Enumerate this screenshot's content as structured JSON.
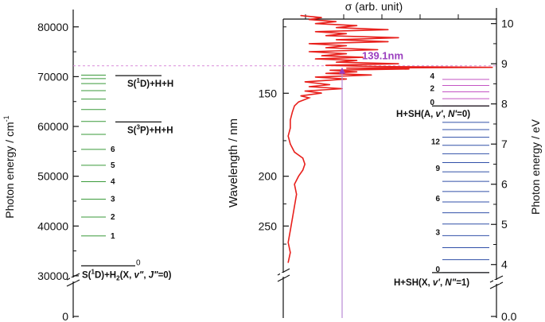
{
  "chart_data": {
    "type": "line",
    "left_axis": {
      "label": "Photon energy / cm",
      "label_superscript": "-1",
      "ticks": [
        "0",
        "30000",
        "40000",
        "50000",
        "60000",
        "70000",
        "80000"
      ],
      "range": [
        28000,
        83500
      ],
      "break": true
    },
    "center_axis": {
      "label": "Wavelength / nm",
      "ticks": [
        "150",
        "200",
        "250"
      ]
    },
    "top_axis": {
      "label": "σ (arb. unit)"
    },
    "right_axis": {
      "label": "Photon energy / eV",
      "ticks": [
        "0.0",
        "4",
        "5",
        "6",
        "7",
        "8",
        "9",
        "10"
      ],
      "range": [
        3.5,
        10.35
      ],
      "break": true
    },
    "left_levels": {
      "base_label": "S(",
      "base_label_sup": "1",
      "base_label_mid": "D)+H",
      "base_label_sub": "2",
      "base_label_tail": "(X, ",
      "base_label_v": "v\"",
      "base_label_sep": ", ",
      "base_label_j": "J\"",
      "base_label_end": "=0)",
      "base_energy": 32000,
      "base_tag": "0",
      "vibrational_energies": [
        38000,
        41800,
        45400,
        48900,
        52200,
        55400,
        58400,
        61000,
        63400,
        65500,
        67200,
        68600,
        69600,
        70300
      ],
      "vibrational_tags": [
        "1",
        "2",
        "3",
        "4",
        "5",
        "6"
      ],
      "thresholds": [
        {
          "energy": 60900,
          "pre": "S(",
          "sup": "3",
          "post": "P)+H+H"
        },
        {
          "energy": 70200,
          "pre": "S(",
          "sup": "1",
          "post": "D)+H+H"
        }
      ]
    },
    "right_levels": {
      "lower_label": "H+SH(X, ",
      "lower_label_v": "v'",
      "lower_label_sep": ", ",
      "lower_label_n": "N\"",
      "lower_label_end": "=1)",
      "lower_base": 3.8,
      "lower_tags": [
        {
          "v": 0,
          "text": "0"
        },
        {
          "v": 3,
          "text": "3"
        },
        {
          "v": 6,
          "text": "6"
        },
        {
          "v": 9,
          "text": "9"
        },
        {
          "v": 12,
          "text": "12"
        }
      ],
      "lower_energies": [
        3.8,
        4.12,
        4.42,
        4.72,
        5.01,
        5.29,
        5.56,
        5.82,
        6.07,
        6.31,
        6.54,
        6.76,
        6.97,
        7.17,
        7.36,
        7.54
      ],
      "upper_label": "H+SH(A, ",
      "upper_label_v": "v'",
      "upper_label_sep": ", ",
      "upper_label_n": "N'",
      "upper_label_end": "=0)",
      "upper_energies": [
        7.95,
        8.13,
        8.3,
        8.46,
        8.61
      ],
      "upper_tags": [
        {
          "v": 0,
          "text": "0"
        },
        {
          "v": 2,
          "text": "2"
        },
        {
          "v": 4,
          "text": "4"
        }
      ]
    },
    "annotation": {
      "text": "139.1nm",
      "energy_ev": 8.91,
      "color": "#9b3fbf"
    },
    "spectrum": {
      "name": "",
      "color": "#e8201c",
      "x_unit": "relative cross section (0-1)",
      "y_unit": "eV",
      "points": [
        [
          0.02,
          4.05
        ],
        [
          0.03,
          4.3
        ],
        [
          0.02,
          4.55
        ],
        [
          0.03,
          4.85
        ],
        [
          0.04,
          5.15
        ],
        [
          0.05,
          5.45
        ],
        [
          0.06,
          5.75
        ],
        [
          0.05,
          6.0
        ],
        [
          0.07,
          6.2
        ],
        [
          0.09,
          6.35
        ],
        [
          0.1,
          6.5
        ],
        [
          0.09,
          6.65
        ],
        [
          0.05,
          6.8
        ],
        [
          0.03,
          7.0
        ],
        [
          0.02,
          7.2
        ],
        [
          0.03,
          7.4
        ],
        [
          0.03,
          7.6
        ],
        [
          0.04,
          7.8
        ],
        [
          0.05,
          7.95
        ],
        [
          0.07,
          8.05
        ],
        [
          0.12,
          8.15
        ],
        [
          0.08,
          8.2
        ],
        [
          0.18,
          8.27
        ],
        [
          0.1,
          8.32
        ],
        [
          0.28,
          8.38
        ],
        [
          0.12,
          8.43
        ],
        [
          0.22,
          8.48
        ],
        [
          0.1,
          8.55
        ],
        [
          0.3,
          8.62
        ],
        [
          0.15,
          8.67
        ],
        [
          0.42,
          8.72
        ],
        [
          0.2,
          8.76
        ],
        [
          0.35,
          8.8
        ],
        [
          0.22,
          8.84
        ],
        [
          0.6,
          8.87
        ],
        [
          0.3,
          8.89
        ],
        [
          1.0,
          8.91
        ],
        [
          0.45,
          8.93
        ],
        [
          0.2,
          8.96
        ],
        [
          0.55,
          9.0
        ],
        [
          0.25,
          9.04
        ],
        [
          0.35,
          9.08
        ],
        [
          0.15,
          9.12
        ],
        [
          0.38,
          9.16
        ],
        [
          0.18,
          9.2
        ],
        [
          0.3,
          9.25
        ],
        [
          0.12,
          9.3
        ],
        [
          0.45,
          9.35
        ],
        [
          0.2,
          9.4
        ],
        [
          0.3,
          9.45
        ],
        [
          0.12,
          9.5
        ],
        [
          0.5,
          9.55
        ],
        [
          0.25,
          9.6
        ],
        [
          0.55,
          9.65
        ],
        [
          0.2,
          9.7
        ],
        [
          0.3,
          9.75
        ],
        [
          0.15,
          9.8
        ],
        [
          0.5,
          9.85
        ],
        [
          0.25,
          9.9
        ],
        [
          0.35,
          9.95
        ],
        [
          0.15,
          10.0
        ],
        [
          0.25,
          10.05
        ],
        [
          0.12,
          10.1
        ],
        [
          0.18,
          10.15
        ],
        [
          0.08,
          10.2
        ]
      ]
    }
  }
}
